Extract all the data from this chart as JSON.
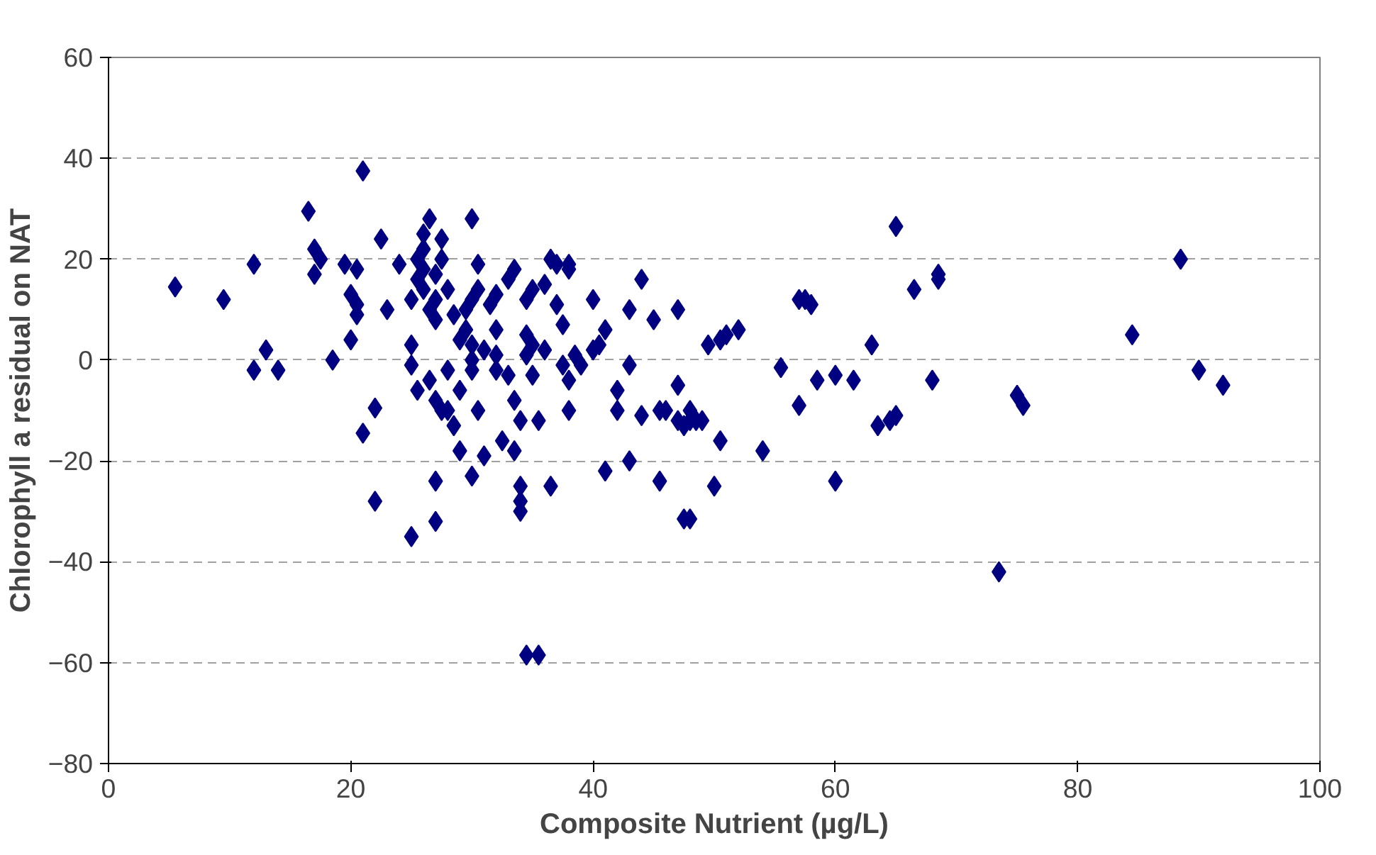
{
  "chart_data": {
    "type": "scatter",
    "xlabel": "Composite Nutrient (µg/L)",
    "ylabel": "Chlorophyll a residual on NAT",
    "marker": "diamond",
    "grid": "y",
    "xlim": [
      0,
      100
    ],
    "ylim": [
      -80,
      60
    ],
    "xticks": [
      0,
      20,
      40,
      60,
      80,
      100
    ],
    "yticks": [
      -80,
      -60,
      -40,
      -20,
      0,
      20,
      40,
      60
    ],
    "series": [
      {
        "color": "#000080",
        "x": [
          5.5,
          9.5,
          12,
          12,
          13,
          14,
          16.5,
          17,
          17.5,
          17,
          18.5,
          19.5,
          20,
          20,
          20.5,
          20.5,
          20.5,
          21,
          21,
          22,
          22,
          22.5,
          23,
          24,
          25,
          25,
          25.5,
          25,
          25,
          25.5,
          25.5,
          26,
          26,
          26.5,
          26,
          26,
          26.5,
          27,
          27,
          26.5,
          27,
          27,
          27.5,
          27.5,
          27,
          27,
          27.5,
          28,
          28,
          28.5,
          28,
          28.5,
          29,
          29,
          29,
          29.5,
          29.5,
          30,
          30,
          30,
          30,
          30,
          30,
          30.5,
          30.5,
          30.5,
          31,
          31,
          31.5,
          32,
          32,
          32,
          32,
          32.5,
          33,
          33,
          33.5,
          33.5,
          33.5,
          34,
          34,
          34,
          34,
          34.5,
          34.5,
          34.5,
          34.5,
          35.5,
          35,
          35,
          35,
          35.5,
          36,
          36,
          36.5,
          36.5,
          37,
          37,
          37.5,
          37.5,
          38,
          38,
          38,
          38,
          38.5,
          39,
          40,
          40,
          40.5,
          41,
          41,
          42,
          42,
          43,
          43,
          43,
          44,
          44,
          45,
          45.5,
          45.5,
          46,
          47,
          47,
          47,
          47.5,
          47.5,
          48,
          48,
          48,
          48.5,
          49,
          49.5,
          50,
          50.5,
          50.5,
          51,
          52,
          54,
          55.5,
          57,
          57,
          57.5,
          58,
          58.5,
          60,
          60,
          61.5,
          63,
          63.5,
          64.5,
          65,
          65,
          66.5,
          68,
          68.5,
          68.5,
          73.5,
          75,
          75.5,
          84.5,
          88.5,
          90,
          92
        ],
        "values": [
          14.5,
          12,
          19,
          -2,
          2,
          -2,
          29.5,
          22,
          20,
          17,
          0,
          19,
          4,
          13,
          18,
          11,
          9,
          -14.5,
          37.5,
          -28,
          -9.5,
          24,
          10,
          19,
          -35,
          -1,
          -6,
          3,
          12,
          16,
          20,
          22,
          25,
          28,
          18,
          14,
          10,
          8,
          -8,
          -4,
          12,
          17,
          20,
          24,
          -24,
          -32,
          -10,
          -2,
          -10,
          9,
          14,
          -13,
          -18,
          -6,
          4,
          6,
          10,
          12,
          28,
          0,
          -2,
          3,
          -23,
          14,
          19,
          -10,
          -19,
          2,
          11,
          6,
          -2,
          13,
          1,
          -16,
          -3,
          16,
          18,
          -8,
          -18,
          -25,
          -28,
          -30,
          -12,
          1,
          5,
          12,
          -58.5,
          -58.5,
          3,
          14,
          -3,
          -12,
          2,
          15,
          20,
          -25,
          11,
          19,
          -1,
          7,
          -4,
          -10,
          18,
          19,
          1,
          -1,
          2,
          12,
          3,
          6,
          -22,
          -10,
          -6,
          -20,
          -1,
          10,
          16,
          -11,
          8,
          -24,
          -10,
          -10,
          10,
          -5,
          -12,
          -13,
          -31.5,
          -10,
          -12,
          -31.5,
          -12,
          -12,
          3,
          -25,
          -16,
          4,
          5,
          6,
          -18,
          -1.5,
          12,
          -9,
          12,
          11,
          -4,
          -3,
          -24,
          -4,
          3,
          -13,
          -12,
          -11,
          26.5,
          14,
          -4,
          17,
          16,
          -42,
          -7,
          -9,
          5,
          20,
          -2,
          -5
        ]
      }
    ]
  }
}
